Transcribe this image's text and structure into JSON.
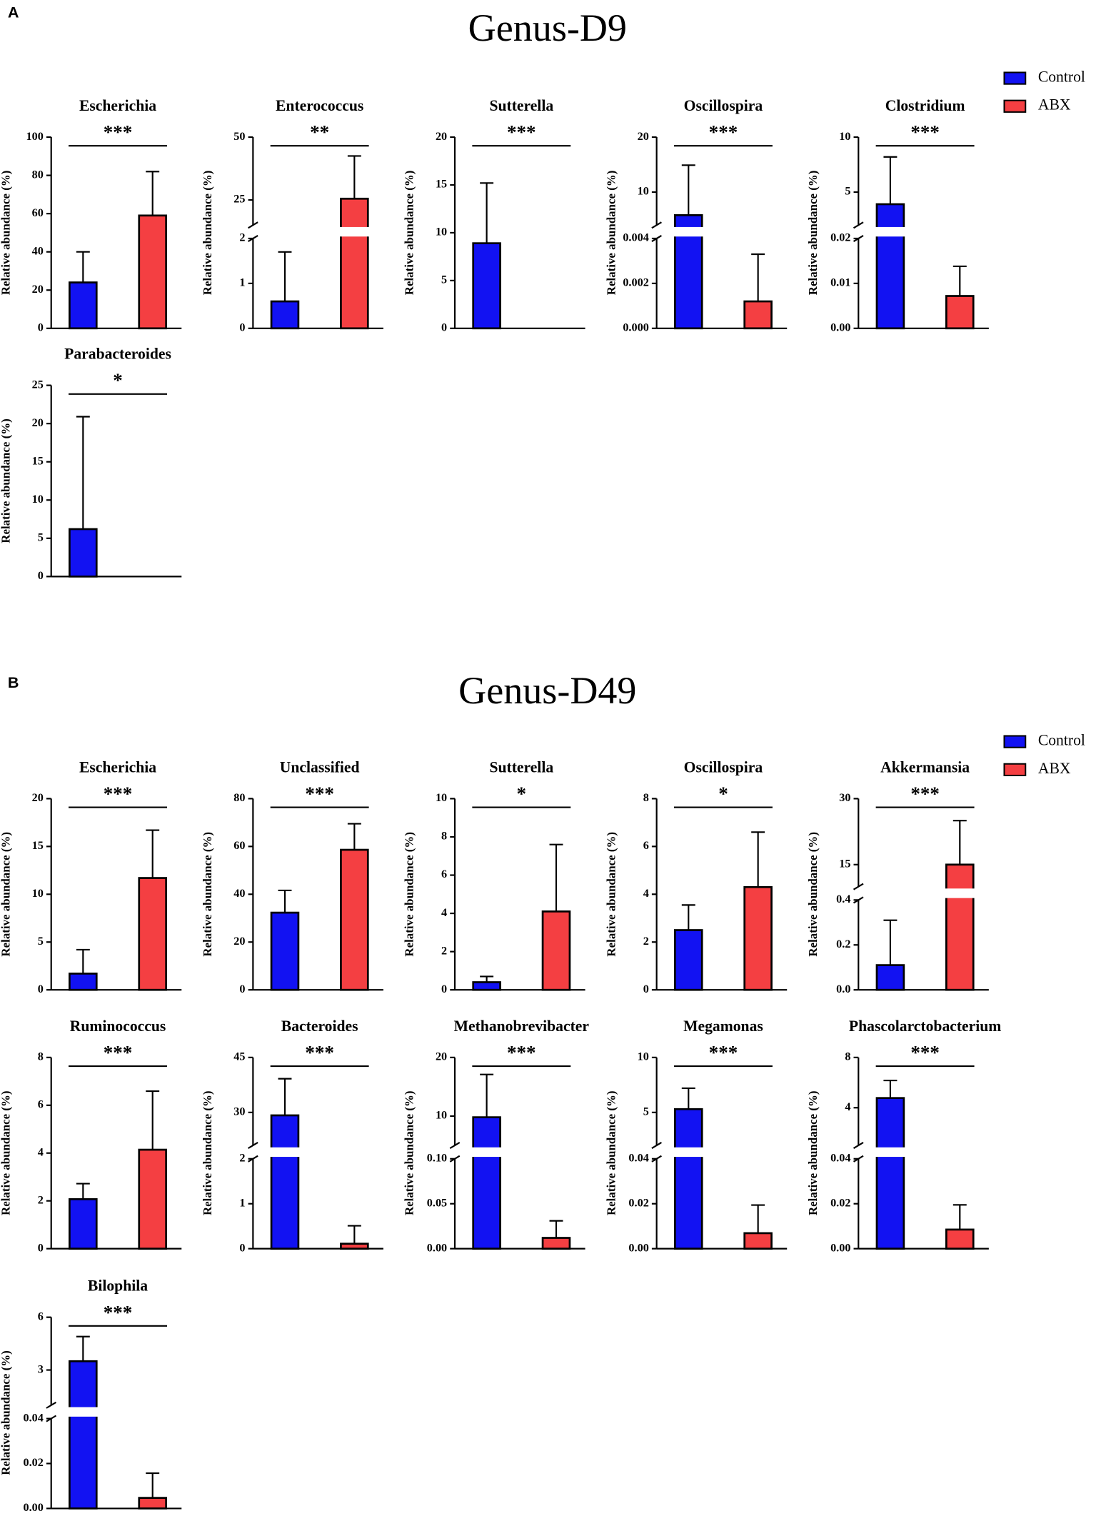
{
  "panels": [
    {
      "label": "A",
      "title": "Genus-D9",
      "legend": [
        {
          "name": "Control",
          "color": "#1212f2"
        },
        {
          "name": "ABX",
          "color": "#f43f42"
        }
      ],
      "chart_data": [
        {
          "type": "bar",
          "title": "Escherichia",
          "ylabel": "Relative abundance (%)",
          "annotation": "***",
          "ylim": [
            0,
            100
          ],
          "yticks": [
            0,
            20,
            40,
            60,
            80,
            100
          ],
          "values": [
            24,
            59
          ],
          "errors": [
            16,
            23
          ]
        },
        {
          "type": "bar",
          "title": "Enterococcus",
          "ylabel": "Relative abundance (%)",
          "annotation": "**",
          "ysegments": [
            {
              "ylim": [
                0,
                2
              ],
              "yticks": [
                0,
                1,
                2
              ]
            },
            {
              "ylim": [
                15,
                50
              ],
              "yticks": [
                25,
                50
              ]
            }
          ],
          "values": [
            0.6,
            25.5
          ],
          "errors": [
            1.1,
            17
          ]
        },
        {
          "type": "bar",
          "title": "Sutterella",
          "ylabel": "Relative abundance (%)",
          "annotation": "***",
          "ylim": [
            0,
            20
          ],
          "yticks": [
            0,
            5,
            10,
            15,
            20
          ],
          "values": [
            8.9,
            0
          ],
          "errors": [
            6.3,
            null
          ]
        },
        {
          "type": "bar",
          "title": "Oscillospira",
          "ylabel": "Relative abundance (%)",
          "annotation": "***",
          "ysegments": [
            {
              "ylim": [
                0,
                0.004
              ],
              "yticks": [
                {
                  "value": 0,
                  "label": "0.000"
                },
                0.002,
                0.004
              ]
            },
            {
              "ylim": [
                4,
                20
              ],
              "yticks": [
                10,
                20
              ]
            }
          ],
          "values": [
            5.8,
            0.0012
          ],
          "errors": [
            9.1,
            0.0021
          ]
        },
        {
          "type": "bar",
          "title": "Clostridium",
          "ylabel": "Relative abundance (%)",
          "annotation": "***",
          "ysegments": [
            {
              "ylim": [
                0,
                0.02
              ],
              "yticks": [
                {
                  "value": 0,
                  "label": "0.00"
                },
                0.01,
                0.02
              ]
            },
            {
              "ylim": [
                2,
                10
              ],
              "yticks": [
                5,
                10
              ]
            }
          ],
          "values": [
            3.9,
            0.0072
          ],
          "errors": [
            4.3,
            0.0066
          ]
        },
        {
          "type": "bar",
          "title": "Parabacteroides",
          "ylabel": "Relative abundance (%)",
          "annotation": "*",
          "ylim": [
            0,
            25
          ],
          "yticks": [
            0,
            5,
            10,
            15,
            20,
            25
          ],
          "values": [
            6.2,
            0
          ],
          "errors": [
            14.7,
            null
          ]
        }
      ]
    },
    {
      "label": "B",
      "title": "Genus-D49",
      "legend": [
        {
          "name": "Control",
          "color": "#1212f2"
        },
        {
          "name": "ABX",
          "color": "#f43f42"
        }
      ],
      "chart_data": [
        {
          "type": "bar",
          "title": "Escherichia",
          "ylabel": "Relative abundance (%)",
          "annotation": "***",
          "ylim": [
            0,
            20
          ],
          "yticks": [
            0,
            5,
            10,
            15,
            20
          ],
          "values": [
            1.7,
            11.7
          ],
          "errors": [
            2.5,
            5
          ]
        },
        {
          "type": "bar",
          "title": "Unclassified",
          "ylabel": "Relative abundance (%)",
          "annotation": "***",
          "ylim": [
            0,
            80
          ],
          "yticks": [
            0,
            20,
            40,
            60,
            80
          ],
          "values": [
            32.3,
            58.6
          ],
          "errors": [
            9.3,
            10.9
          ]
        },
        {
          "type": "bar",
          "title": "Sutterella",
          "ylabel": "Relative abundance (%)",
          "annotation": "*",
          "ylim": [
            0,
            10
          ],
          "yticks": [
            0,
            2,
            4,
            6,
            8,
            10
          ],
          "values": [
            0.4,
            4.1
          ],
          "errors": [
            0.3,
            3.5
          ]
        },
        {
          "type": "bar",
          "title": "Oscillospira",
          "ylabel": "Relative abundance (%)",
          "annotation": "*",
          "ylim": [
            0,
            8
          ],
          "yticks": [
            0,
            2,
            4,
            6,
            8
          ],
          "values": [
            2.5,
            4.3
          ],
          "errors": [
            1.05,
            2.3
          ]
        },
        {
          "type": "bar",
          "title": "Akkermansia",
          "ylabel": "Relative abundance (%)",
          "annotation": "***",
          "ysegments": [
            {
              "ylim": [
                0,
                0.4
              ],
              "yticks": [
                {
                  "value": 0,
                  "label": "0.0"
                },
                0.2,
                0.4
              ]
            },
            {
              "ylim": [
                10,
                30
              ],
              "yticks": [
                15,
                30
              ]
            }
          ],
          "values": [
            0.11,
            15
          ],
          "errors": [
            0.2,
            10
          ]
        },
        {
          "type": "bar",
          "title": "Ruminococcus",
          "ylabel": "Relative abundance (%)",
          "annotation": "***",
          "ylim": [
            0,
            8
          ],
          "yticks": [
            0,
            2,
            4,
            6,
            8
          ],
          "values": [
            2.07,
            4.14
          ],
          "errors": [
            0.65,
            2.45
          ]
        },
        {
          "type": "bar",
          "title": "Bacteroides",
          "ylabel": "Relative abundance (%)",
          "annotation": "***",
          "ysegments": [
            {
              "ylim": [
                0,
                2
              ],
              "yticks": [
                0,
                1,
                2
              ]
            },
            {
              "ylim": [
                21,
                45
              ],
              "yticks": [
                30,
                45
              ]
            }
          ],
          "values": [
            29.2,
            0.11
          ],
          "errors": [
            10,
            0.4
          ]
        },
        {
          "type": "bar",
          "title": "Methanobrevibacter",
          "ylabel": "Relative abundance (%)",
          "annotation": "***",
          "ysegments": [
            {
              "ylim": [
                0,
                0.1
              ],
              "yticks": [
                {
                  "value": 0,
                  "label": "0.00"
                },
                0.05,
                {
                  "value": 0.1,
                  "label": "0.10"
                }
              ]
            },
            {
              "ylim": [
                5,
                20
              ],
              "yticks": [
                10,
                20
              ]
            }
          ],
          "values": [
            9.8,
            0.012
          ],
          "errors": [
            7.3,
            0.019
          ]
        },
        {
          "type": "bar",
          "title": "Megamonas",
          "ylabel": "Relative abundance (%)",
          "annotation": "***",
          "ysegments": [
            {
              "ylim": [
                0,
                0.04
              ],
              "yticks": [
                {
                  "value": 0,
                  "label": "0.00"
                },
                0.02,
                0.04
              ]
            },
            {
              "ylim": [
                2,
                10
              ],
              "yticks": [
                5,
                10
              ]
            }
          ],
          "values": [
            5.3,
            0.0069
          ],
          "errors": [
            1.9,
            0.0125
          ]
        },
        {
          "type": "bar",
          "title": "Phascolarctobacterium",
          "ylabel": "Relative abundance (%)",
          "annotation": "***",
          "ysegments": [
            {
              "ylim": [
                0,
                0.04
              ],
              "yticks": [
                {
                  "value": 0,
                  "label": "0.00"
                },
                0.02,
                0.04
              ]
            },
            {
              "ylim": [
                1,
                8
              ],
              "yticks": [
                4,
                8
              ]
            }
          ],
          "values": [
            4.77,
            0.0085
          ],
          "errors": [
            1.4,
            0.011
          ]
        },
        {
          "type": "bar",
          "title": "Bilophila",
          "ylabel": "Relative abundance (%)",
          "annotation": "***",
          "ysegments": [
            {
              "ylim": [
                0,
                0.04
              ],
              "yticks": [
                {
                  "value": 0,
                  "label": "0.00"
                },
                0.02,
                0.04
              ]
            },
            {
              "ylim": [
                1,
                6
              ],
              "yticks": [
                3,
                6
              ]
            }
          ],
          "values": [
            3.5,
            0.0047
          ],
          "errors": [
            1.4,
            0.011
          ]
        }
      ]
    }
  ]
}
